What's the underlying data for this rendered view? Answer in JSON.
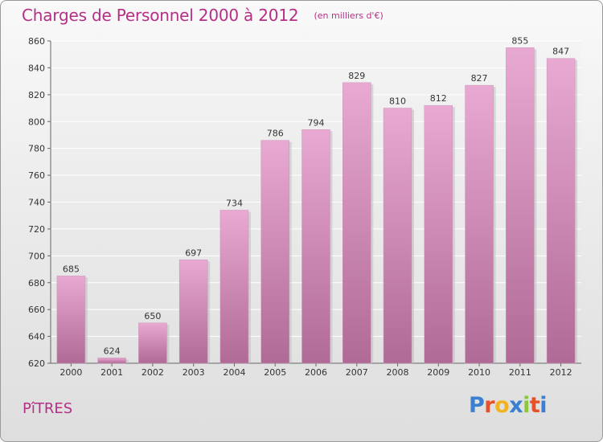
{
  "header": {
    "title": "Charges de Personnel 2000 à 2012",
    "subtitle": "(en milliers d'€)"
  },
  "footer": {
    "city": "PîTRES",
    "logo": "Proxiti"
  },
  "colors": {
    "accent": "#b52f86",
    "bar_top": "#e8a9d2",
    "bar_bottom": "#b06a96",
    "logo_letters": [
      "#3a7fd0",
      "#e8502a",
      "#f2b31d",
      "#3a7fd0",
      "#8cc63f",
      "#e8502a",
      "#3a7fd0"
    ]
  },
  "chart_data": {
    "type": "bar",
    "title": "Charges de Personnel 2000 à 2012",
    "subtitle": "(en milliers d'€)",
    "categories": [
      "2000",
      "2001",
      "2002",
      "2003",
      "2004",
      "2005",
      "2006",
      "2007",
      "2008",
      "2009",
      "2010",
      "2011",
      "2012"
    ],
    "values": [
      685,
      624,
      650,
      697,
      734,
      786,
      794,
      829,
      810,
      812,
      827,
      855,
      847
    ],
    "ylim": [
      620,
      860
    ],
    "yticks": [
      620,
      640,
      660,
      680,
      700,
      720,
      740,
      760,
      780,
      800,
      820,
      840,
      860
    ],
    "grid": true,
    "legend": "none"
  }
}
